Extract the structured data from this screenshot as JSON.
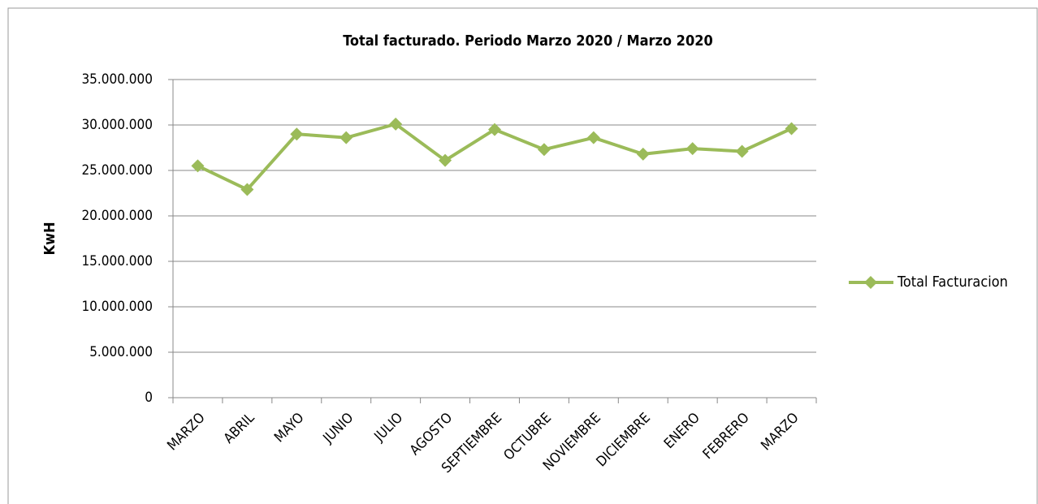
{
  "chart_data": {
    "type": "line",
    "title": "Total facturado. Periodo Marzo 2020 / Marzo 2020",
    "y_label": "KwH",
    "categories": [
      "MARZO",
      "ABRIL",
      "MAYO",
      "JUNIO",
      "JULIO",
      "AGOSTO",
      "SEPTIEMBRE",
      "OCTUBRE",
      "NOVIEMBRE",
      "DICIEMBRE",
      "ENERO",
      "FEBRERO",
      "MARZO"
    ],
    "series": [
      {
        "name": "Total Facturacion",
        "color": "#9bbb59",
        "values": [
          25500000,
          22900000,
          29000000,
          28600000,
          30100000,
          26100000,
          29500000,
          27300000,
          28600000,
          26800000,
          27400000,
          27100000,
          29600000
        ]
      }
    ],
    "ylim": [
      0,
      35000000
    ],
    "yticks": [
      0,
      {
        "value": 5000000,
        "label": "5.000.000"
      },
      {
        "value": 10000000,
        "label": "10.000.000"
      },
      {
        "value": 15000000,
        "label": "15.000.000"
      },
      {
        "value": 20000000,
        "label": "20.000.000"
      },
      {
        "value": 25000000,
        "label": "25.000.000"
      },
      {
        "value": 30000000,
        "label": "30.000.000"
      },
      {
        "value": 35000000,
        "label": "35.000.000"
      }
    ],
    "grid": true,
    "legend": "right"
  }
}
